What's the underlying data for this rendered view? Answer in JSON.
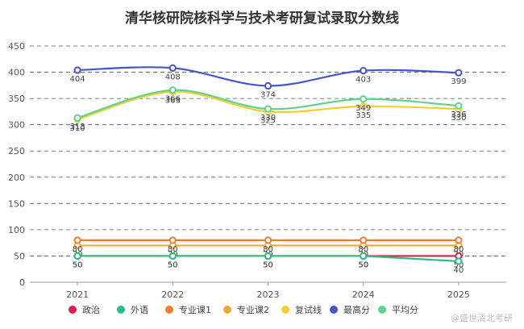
{
  "chart_data": {
    "type": "line",
    "title": "清华核研院核科学与技术考研复试录取分数线",
    "xlabel": "",
    "ylabel": "",
    "ylim": [
      0,
      450
    ],
    "yticks": [
      0,
      50,
      100,
      150,
      200,
      250,
      300,
      350,
      400,
      450
    ],
    "grid": true,
    "legend_position": "bottom",
    "x": [
      "2021",
      "2022",
      "2023",
      "2024",
      "2025"
    ],
    "series": [
      {
        "name": "政治",
        "color": "#d6204e",
        "values": [
          50,
          50,
          50,
          50,
          50
        ],
        "labels": [
          "50",
          "50",
          "50",
          "50",
          "50"
        ]
      },
      {
        "name": "外语",
        "color": "#2dbd7e",
        "values": [
          50,
          50,
          50,
          50,
          40
        ],
        "labels": [
          "50",
          "50",
          "50",
          "50",
          "40"
        ]
      },
      {
        "name": "专业课1",
        "color": "#ee7d2c",
        "values": [
          80,
          80,
          80,
          80,
          80
        ],
        "labels": [
          "80",
          "80",
          "80",
          "80",
          "80"
        ]
      },
      {
        "name": "专业课2",
        "color": "#f0a93a",
        "values": [
          70,
          70,
          70,
          70,
          70
        ],
        "labels": [
          "70",
          "70",
          "70",
          "70",
          "70"
        ]
      },
      {
        "name": "复试线",
        "color": "#f2cf2f",
        "values": [
          310,
          363,
          325,
          335,
          330
        ],
        "labels": [
          "310",
          "363",
          "325",
          "335",
          "330"
        ]
      },
      {
        "name": "最高分",
        "color": "#4756c7",
        "values": [
          404,
          408,
          374,
          403,
          399
        ],
        "labels": [
          "404",
          "408",
          "374",
          "403",
          "399"
        ]
      },
      {
        "name": "平均分",
        "color": "#5fd38d",
        "values": [
          313,
          366,
          330,
          349,
          336
        ],
        "labels": [
          "313",
          "366",
          "330",
          "349",
          "336"
        ]
      }
    ],
    "watermark": "@盛世清北考研"
  }
}
